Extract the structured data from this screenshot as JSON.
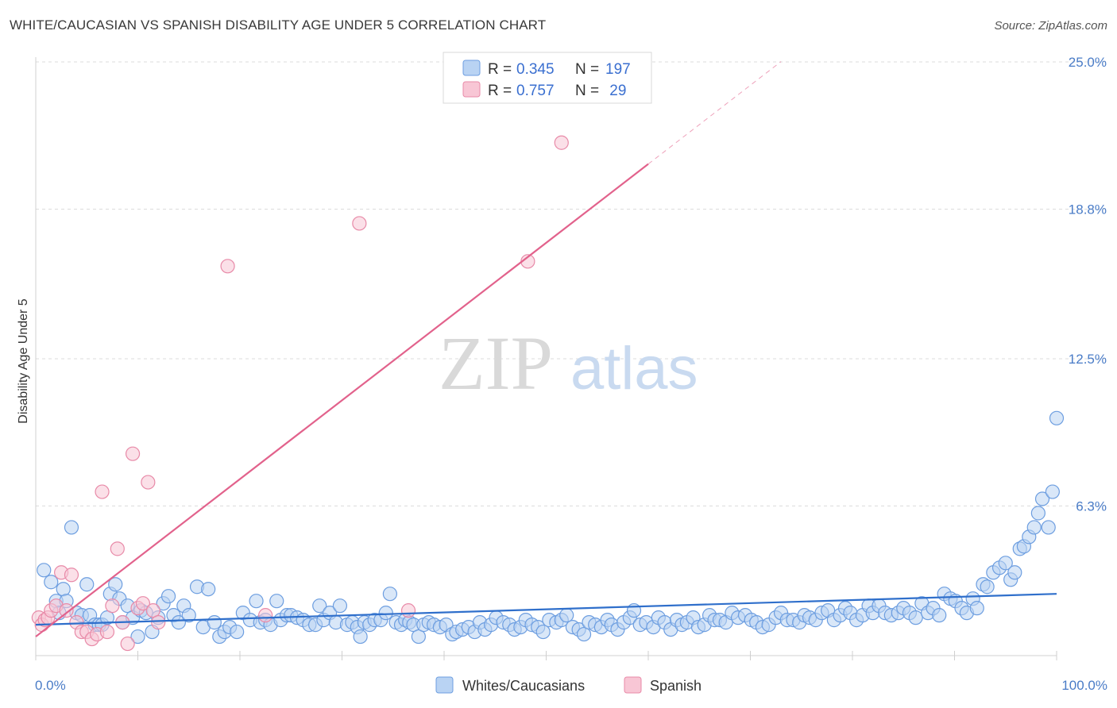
{
  "header": {
    "title": "WHITE/CAUCASIAN VS SPANISH DISABILITY AGE UNDER 5 CORRELATION CHART",
    "source": "Source: ZipAtlas.com"
  },
  "watermark": {
    "part1": "ZIP",
    "part2": "atlas"
  },
  "colors": {
    "blue_fill": "#b9d3f3",
    "blue_stroke": "#6d9ee0",
    "blue_line": "#2f6fcb",
    "pink_fill": "#f8c6d5",
    "pink_stroke": "#e88aa8",
    "pink_line": "#e2628c",
    "grid": "#dcdcdc",
    "axis_text": "#4a7cc7"
  },
  "legend": {
    "r_label": "R = ",
    "n_label": "N = ",
    "rows": [
      {
        "name": "Whites/Caucasians",
        "r": "0.345",
        "n": "197"
      },
      {
        "name": "Spanish",
        "r": "0.757",
        "n": " 29"
      }
    ]
  },
  "chart_data": {
    "type": "scatter",
    "title": "WHITE/CAUCASIAN VS SPANISH DISABILITY AGE UNDER 5 CORRELATION CHART",
    "xlabel": "",
    "ylabel": "Disability Age Under 5",
    "xlim": [
      0,
      100
    ],
    "ylim": [
      0,
      25.0
    ],
    "x_tick_labels": [
      "0.0%",
      "100.0%"
    ],
    "y_ticks": [
      {
        "value": 25.0,
        "label": "25.0%"
      },
      {
        "value": 18.8,
        "label": "18.8%"
      },
      {
        "value": 12.5,
        "label": "12.5%"
      },
      {
        "value": 6.3,
        "label": "6.3%"
      }
    ],
    "grid": true,
    "legend_position": "top-center",
    "series": [
      {
        "name": "Whites/Caucasians",
        "color": "blue",
        "trend": {
          "x0": 0,
          "y0": 1.3,
          "x1": 100,
          "y1": 2.6,
          "dashed_until": 100
        },
        "points": [
          [
            0.8,
            3.6
          ],
          [
            1.5,
            3.1
          ],
          [
            2,
            2.3
          ],
          [
            2.3,
            1.8
          ],
          [
            2.7,
            2.8
          ],
          [
            3,
            2.3
          ],
          [
            3.5,
            5.4
          ],
          [
            4,
            1.8
          ],
          [
            4.5,
            1.7
          ],
          [
            5,
            3.0
          ],
          [
            5.3,
            1.7
          ],
          [
            5.8,
            1.3
          ],
          [
            6.2,
            1.3
          ],
          [
            6.5,
            1.3
          ],
          [
            7,
            1.6
          ],
          [
            7.3,
            2.6
          ],
          [
            7.8,
            3.0
          ],
          [
            8.2,
            2.4
          ],
          [
            8.5,
            1.4
          ],
          [
            9,
            2.1
          ],
          [
            9.5,
            1.6
          ],
          [
            10,
            0.8
          ],
          [
            10.3,
            1.9
          ],
          [
            10.8,
            1.8
          ],
          [
            11.4,
            1.0
          ],
          [
            12,
            1.6
          ],
          [
            12.5,
            2.2
          ],
          [
            13,
            2.5
          ],
          [
            13.5,
            1.7
          ],
          [
            14,
            1.4
          ],
          [
            14.5,
            2.1
          ],
          [
            15,
            1.7
          ],
          [
            15.8,
            2.9
          ],
          [
            16.4,
            1.2
          ],
          [
            16.9,
            2.8
          ],
          [
            17.5,
            1.4
          ],
          [
            18,
            0.8
          ],
          [
            18.5,
            1.0
          ],
          [
            19,
            1.2
          ],
          [
            19.7,
            1.0
          ],
          [
            20.3,
            1.8
          ],
          [
            21,
            1.5
          ],
          [
            21.6,
            2.3
          ],
          [
            22,
            1.4
          ],
          [
            22.5,
            1.5
          ],
          [
            23,
            1.3
          ],
          [
            23.6,
            2.3
          ],
          [
            24,
            1.5
          ],
          [
            24.6,
            1.7
          ],
          [
            25,
            1.7
          ],
          [
            25.6,
            1.6
          ],
          [
            26.2,
            1.5
          ],
          [
            26.8,
            1.3
          ],
          [
            27.4,
            1.3
          ],
          [
            27.8,
            2.1
          ],
          [
            28.2,
            1.5
          ],
          [
            28.8,
            1.8
          ],
          [
            29.4,
            1.4
          ],
          [
            29.8,
            2.1
          ],
          [
            30.5,
            1.3
          ],
          [
            31,
            1.4
          ],
          [
            31.5,
            1.2
          ],
          [
            31.8,
            0.8
          ],
          [
            32.2,
            1.4
          ],
          [
            32.7,
            1.3
          ],
          [
            33.2,
            1.5
          ],
          [
            33.8,
            1.5
          ],
          [
            34.3,
            1.8
          ],
          [
            34.7,
            2.6
          ],
          [
            35.3,
            1.4
          ],
          [
            35.8,
            1.3
          ],
          [
            36.2,
            1.5
          ],
          [
            36.6,
            1.4
          ],
          [
            37,
            1.3
          ],
          [
            37.5,
            0.8
          ],
          [
            38,
            1.3
          ],
          [
            38.5,
            1.4
          ],
          [
            39,
            1.3
          ],
          [
            39.6,
            1.2
          ],
          [
            40.2,
            1.3
          ],
          [
            40.8,
            0.9
          ],
          [
            41.2,
            1.0
          ],
          [
            41.8,
            1.1
          ],
          [
            42.4,
            1.2
          ],
          [
            43,
            1.0
          ],
          [
            43.5,
            1.4
          ],
          [
            44,
            1.1
          ],
          [
            44.6,
            1.3
          ],
          [
            45.1,
            1.6
          ],
          [
            45.8,
            1.4
          ],
          [
            46.4,
            1.3
          ],
          [
            46.9,
            1.1
          ],
          [
            47.5,
            1.2
          ],
          [
            48,
            1.5
          ],
          [
            48.6,
            1.3
          ],
          [
            49.2,
            1.2
          ],
          [
            49.7,
            1.0
          ],
          [
            50.3,
            1.5
          ],
          [
            51,
            1.4
          ],
          [
            51.5,
            1.5
          ],
          [
            52,
            1.7
          ],
          [
            52.6,
            1.2
          ],
          [
            53.2,
            1.1
          ],
          [
            53.7,
            0.9
          ],
          [
            54.2,
            1.4
          ],
          [
            54.8,
            1.3
          ],
          [
            55.4,
            1.2
          ],
          [
            56,
            1.5
          ],
          [
            56.4,
            1.3
          ],
          [
            57,
            1.1
          ],
          [
            57.6,
            1.4
          ],
          [
            58.2,
            1.6
          ],
          [
            58.6,
            1.9
          ],
          [
            59.2,
            1.3
          ],
          [
            59.8,
            1.4
          ],
          [
            60.5,
            1.2
          ],
          [
            61,
            1.6
          ],
          [
            61.6,
            1.4
          ],
          [
            62.2,
            1.1
          ],
          [
            62.8,
            1.5
          ],
          [
            63.3,
            1.3
          ],
          [
            63.8,
            1.4
          ],
          [
            64.4,
            1.6
          ],
          [
            64.9,
            1.2
          ],
          [
            65.5,
            1.3
          ],
          [
            66,
            1.7
          ],
          [
            66.5,
            1.5
          ],
          [
            67,
            1.5
          ],
          [
            67.6,
            1.4
          ],
          [
            68.2,
            1.8
          ],
          [
            68.8,
            1.6
          ],
          [
            69.5,
            1.7
          ],
          [
            70.1,
            1.5
          ],
          [
            70.6,
            1.4
          ],
          [
            71.2,
            1.2
          ],
          [
            71.8,
            1.3
          ],
          [
            72.5,
            1.6
          ],
          [
            73,
            1.8
          ],
          [
            73.6,
            1.5
          ],
          [
            74.2,
            1.5
          ],
          [
            74.8,
            1.4
          ],
          [
            75.3,
            1.7
          ],
          [
            75.8,
            1.6
          ],
          [
            76.4,
            1.5
          ],
          [
            77,
            1.8
          ],
          [
            77.6,
            1.9
          ],
          [
            78.2,
            1.5
          ],
          [
            78.8,
            1.7
          ],
          [
            79.3,
            2.0
          ],
          [
            79.8,
            1.8
          ],
          [
            80.4,
            1.5
          ],
          [
            81,
            1.7
          ],
          [
            81.6,
            2.1
          ],
          [
            82,
            1.8
          ],
          [
            82.6,
            2.1
          ],
          [
            83.2,
            1.8
          ],
          [
            83.8,
            1.7
          ],
          [
            84.5,
            1.8
          ],
          [
            85,
            2.0
          ],
          [
            85.6,
            1.8
          ],
          [
            86.2,
            1.6
          ],
          [
            86.8,
            2.2
          ],
          [
            87.4,
            1.8
          ],
          [
            87.9,
            2.0
          ],
          [
            88.5,
            1.7
          ],
          [
            89,
            2.6
          ],
          [
            89.6,
            2.4
          ],
          [
            90.1,
            2.3
          ],
          [
            90.7,
            2.0
          ],
          [
            91.2,
            1.8
          ],
          [
            91.8,
            2.4
          ],
          [
            92.2,
            2.0
          ],
          [
            92.8,
            3.0
          ],
          [
            93.2,
            2.9
          ],
          [
            93.8,
            3.5
          ],
          [
            94.4,
            3.7
          ],
          [
            95,
            3.9
          ],
          [
            95.5,
            3.2
          ],
          [
            95.9,
            3.5
          ],
          [
            96.4,
            4.5
          ],
          [
            96.8,
            4.6
          ],
          [
            97.3,
            5.0
          ],
          [
            97.8,
            5.4
          ],
          [
            98.2,
            6.0
          ],
          [
            98.6,
            6.6
          ],
          [
            99.2,
            5.4
          ],
          [
            99.6,
            6.9
          ],
          [
            100,
            10.0
          ]
        ]
      },
      {
        "name": "Spanish",
        "color": "pink",
        "trend": {
          "x0": 0,
          "y0": 0.8,
          "x1": 60,
          "y1": 20.7,
          "dashed_until": 73
        },
        "points": [
          [
            0.3,
            1.6
          ],
          [
            0.6,
            1.3
          ],
          [
            0.9,
            1.5
          ],
          [
            1.2,
            1.6
          ],
          [
            1.5,
            1.9
          ],
          [
            2,
            2.1
          ],
          [
            2.5,
            3.5
          ],
          [
            3,
            1.9
          ],
          [
            3.5,
            3.4
          ],
          [
            4,
            1.4
          ],
          [
            4.5,
            1.0
          ],
          [
            5,
            1.0
          ],
          [
            5.5,
            0.7
          ],
          [
            6,
            0.9
          ],
          [
            6.5,
            6.9
          ],
          [
            7,
            1.0
          ],
          [
            7.5,
            2.1
          ],
          [
            8,
            4.5
          ],
          [
            8.5,
            1.4
          ],
          [
            9,
            0.5
          ],
          [
            9.5,
            8.5
          ],
          [
            10,
            2.0
          ],
          [
            10.5,
            2.2
          ],
          [
            11,
            7.3
          ],
          [
            11.5,
            1.9
          ],
          [
            12,
            1.4
          ],
          [
            18.8,
            16.4
          ],
          [
            22.5,
            1.7
          ],
          [
            31.7,
            18.2
          ],
          [
            36.5,
            1.9
          ],
          [
            48.2,
            16.6
          ],
          [
            51.5,
            21.6
          ]
        ]
      }
    ]
  }
}
